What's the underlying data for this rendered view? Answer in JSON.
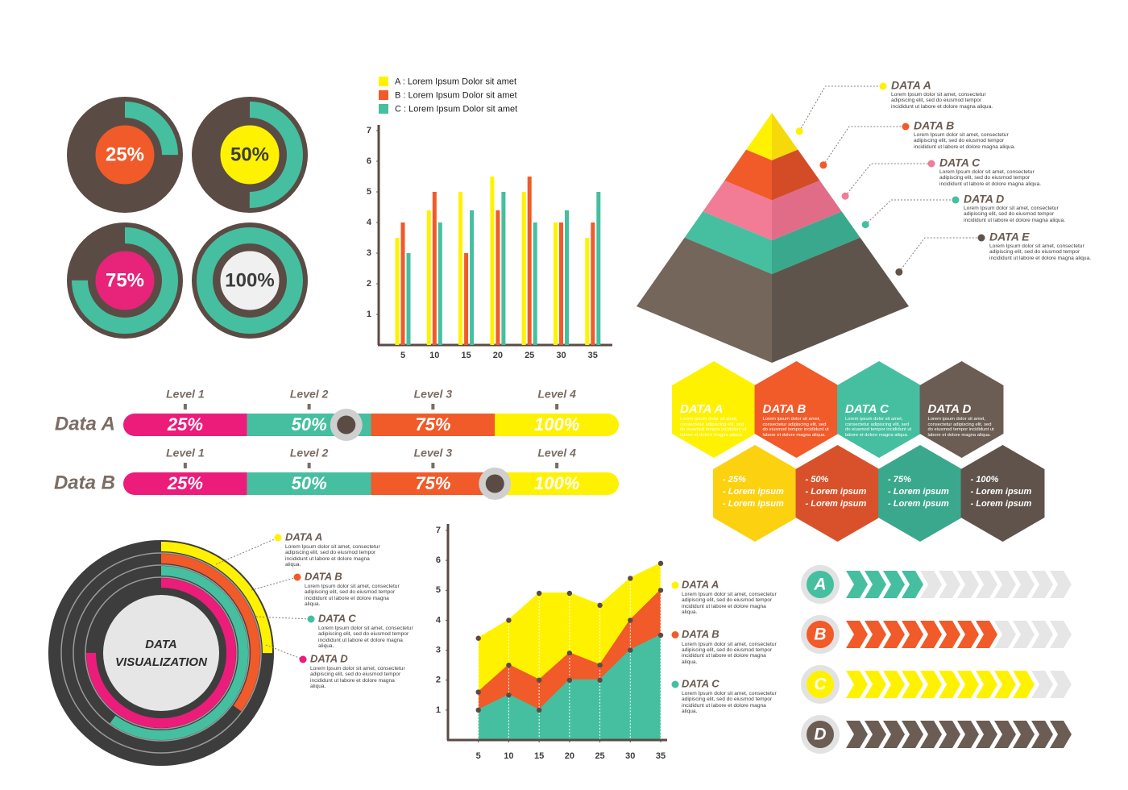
{
  "chart_data": [
    {
      "type": "donut",
      "values": [
        25,
        50,
        75,
        100
      ],
      "value_labels": [
        "25%",
        "50%",
        "75%",
        "100%"
      ],
      "range": [
        0,
        100
      ],
      "colors": [
        "#f15a29",
        "#fff200",
        "#e8237a",
        "#f0f0f0"
      ],
      "label_colors": [
        "#ffffff",
        "#3d3d3d",
        "#ffffff",
        "#3d3d3d"
      ],
      "ring_color": "#45bfa0",
      "track_color": "#5b4b45"
    },
    {
      "type": "bar",
      "categories": [
        "5",
        "10",
        "15",
        "20",
        "25",
        "30",
        "35"
      ],
      "ylim": [
        0,
        7
      ],
      "yticks": [
        1,
        2,
        3,
        4,
        5,
        6,
        7
      ],
      "series": [
        {
          "name": "A : Lorem Ipsum Dolor sit amet",
          "color": "#fff200",
          "values": [
            3.5,
            4.4,
            5,
            5.5,
            5,
            4,
            3.5
          ]
        },
        {
          "name": "B : Lorem Ipsum Dolor sit amet",
          "color": "#f15a29",
          "values": [
            4,
            5,
            3,
            4.4,
            5.5,
            4,
            4
          ]
        },
        {
          "name": "C : Lorem Ipsum Dolor sit amet",
          "color": "#45bfa0",
          "values": [
            3,
            4,
            4.4,
            5,
            4,
            4.4,
            5
          ]
        }
      ]
    },
    {
      "type": "area",
      "x": [
        5,
        10,
        15,
        20,
        25,
        30,
        35
      ],
      "xlim": [
        0,
        35
      ],
      "xticks": [
        5,
        10,
        15,
        20,
        25,
        30,
        35
      ],
      "ylim": [
        0,
        7
      ],
      "yticks": [
        1,
        2,
        3,
        4,
        5,
        6,
        7
      ],
      "series": [
        {
          "name": "DATA A",
          "description": "Lorem Ipsum dolor sit amet, consectetur adipiscing elit, sed do eiusmod tempor incididunt ut labore et dolore magna aliqua.",
          "color": "#fff200",
          "values": [
            3.4,
            4,
            4.9,
            4.9,
            4.5,
            5.4,
            5.9
          ]
        },
        {
          "name": "DATA B",
          "description": "Lorem Ipsum dolor sit amet, consectetur adipiscing elit, sed do eiusmod tempor incididunt ut labore et dolore magna aliqua.",
          "color": "#f15a29",
          "values": [
            1.6,
            2.5,
            2,
            2.9,
            2.5,
            4,
            5
          ]
        },
        {
          "name": "DATA C",
          "description": "Lorem Ipsum dolor sit amet, consectetur adipiscing elit, sed do eiusmod tempor incididunt ut labore et dolore magna aliqua.",
          "color": "#45bfa0",
          "values": [
            1,
            1.5,
            1,
            2,
            2,
            3,
            3.5
          ]
        }
      ]
    },
    {
      "type": "level",
      "xlim": [
        0,
        100
      ],
      "colors": [
        "#ec1c7b",
        "#45bfa0",
        "#f15a29",
        "#fff200"
      ],
      "rows": [
        {
          "name": "Data A",
          "levels": [
            "Level 1",
            "Level 2",
            "Level 3",
            "Level 4"
          ],
          "values": [
            25,
            50,
            75,
            100
          ],
          "value_labels": [
            "25%",
            "50%",
            "75%",
            "100%"
          ],
          "marker": 45
        },
        {
          "name": "Data B",
          "levels": [
            "Level 1",
            "Level 2",
            "Level 3",
            "Level 4"
          ],
          "values": [
            25,
            50,
            75,
            100
          ],
          "value_labels": [
            "25%",
            "50%",
            "75%",
            "100%"
          ],
          "marker": 75
        }
      ]
    },
    {
      "type": "radial",
      "range": [
        0,
        100
      ],
      "title_lines": [
        "DATA",
        "VISUALIZATION"
      ],
      "series": [
        {
          "name": "DATA A",
          "description": "Lorem Ipsum dolor sit amet, consectetur adipiscing elit, sed do eiusmod tempor incididunt ut labore et dolore magna aliqua.",
          "color": "#fff200",
          "value": 25
        },
        {
          "name": "DATA B",
          "description": "Lorem Ipsum dolor sit amet, consectetur adipiscing elit, sed do eiusmod tempor incididunt ut labore et dolore magna aliqua.",
          "color": "#f15a29",
          "value": 35
        },
        {
          "name": "DATA C",
          "description": "Lorem Ipsum dolor sit amet, consectetur adipiscing elit, sed do eiusmod tempor incididunt ut labore et dolore magna aliqua.",
          "color": "#45bfa0",
          "value": 60
        },
        {
          "name": "DATA D",
          "description": "Lorem Ipsum dolor sit amet, consectetur adipiscing elit, sed do eiusmod tempor incididunt ut labore et dolore magna aliqua.",
          "color": "#ec1c7b",
          "value": 75
        }
      ]
    },
    {
      "type": "chevron",
      "total": 12,
      "empty_color": "#e6e6e6",
      "rows": [
        {
          "label": "A",
          "color": "#45bfa0",
          "value": 4
        },
        {
          "label": "B",
          "color": "#f15a29",
          "value": 8
        },
        {
          "label": "C",
          "color": "#fff200",
          "value": 10
        },
        {
          "label": "D",
          "color": "#6b5d54",
          "value": 12
        }
      ]
    }
  ],
  "pyramid": {
    "items": [
      {
        "label": "DATA A",
        "description": "Lorem Ipsum dolor sit amet, consectetur adipiscing elit, sed do eiusmod tempor incididunt ut labore et dolore magna aliqua.",
        "color": "#fff200",
        "shade": "#f5d90a"
      },
      {
        "label": "DATA B",
        "description": "Lorem Ipsum dolor sit amet, consectetur adipiscing elit, sed do eiusmod tempor incididunt ut labore et dolore magna aliqua.",
        "color": "#f15a29",
        "shade": "#d44c26"
      },
      {
        "label": "DATA C",
        "description": "Lorem Ipsum dolor sit amet, consectetur adipiscing elit, sed do eiusmod tempor incididunt ut labore et dolore magna aliqua.",
        "color": "#f27b96",
        "shade": "#e06c88"
      },
      {
        "label": "DATA D",
        "description": "Lorem Ipsum dolor sit amet, consectetur adipiscing elit, sed do eiusmod tempor incididunt ut labore et dolore magna aliqua.",
        "color": "#45bfa0",
        "shade": "#3aa88c"
      },
      {
        "label": "DATA E",
        "description": "Lorem Ipsum dolor sit amet, consectetur adipiscing elit, sed do eiusmod tempor incididunt ut labore et dolore magna aliqua.",
        "color": "#74665b",
        "shade": "#5e544b"
      }
    ]
  },
  "hexagons": {
    "items": [
      {
        "title": "DATA A",
        "description": "Lorem ipsum dolor sit amet, consectetur adipiscing elit, sed do eiusmod tempor incididunt ut labore et dolore magna aliqua.",
        "color": "#fff200",
        "lines": [
          "- 25%",
          "- Lorem ipsum",
          "- Lorem ipsum"
        ],
        "lines_color": "#fcd10f"
      },
      {
        "title": "DATA B",
        "description": "Lorem ipsum dolor sit amet, consectetur adipiscing elit, sed do eiusmod tempor incididunt ut labore et dolore magna aliqua.",
        "color": "#f15a29",
        "lines": [
          "- 50%",
          "- Lorem ipsum",
          "- Lorem ipsum"
        ],
        "lines_color": "#d9512a"
      },
      {
        "title": "DATA C",
        "description": "Lorem ipsum dolor sit amet, consectetur adipiscing elit, sed do eiusmod tempor incididunt ut labore et dolore magna aliqua.",
        "color": "#45bfa0",
        "lines": [
          "- 75%",
          "- Lorem ipsum",
          "- Lorem ipsum"
        ],
        "lines_color": "#3aa88c"
      },
      {
        "title": "DATA D",
        "description": "Lorem ipsum dolor sit amet, consectetur adipiscing elit, sed do eiusmod tempor incididunt ut labore et dolore magna aliqua.",
        "color": "#6b5d54",
        "lines": [
          "- 100%",
          "- Lorem ipsum",
          "- Lorem ipsum"
        ],
        "lines_color": "#5f534b"
      }
    ]
  }
}
